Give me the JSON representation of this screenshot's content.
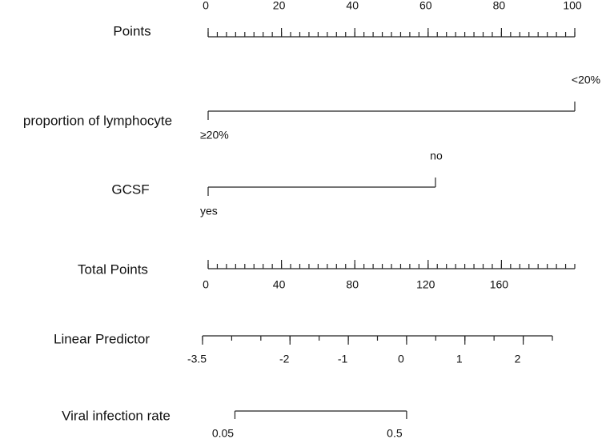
{
  "chart_data": {
    "type": "nomogram",
    "rows": [
      {
        "name": "Points",
        "kind": "axis",
        "xlim": [
          0,
          100
        ],
        "xticks": [
          0,
          20,
          40,
          60,
          80,
          100
        ],
        "minor_ticks": [
          0,
          2.5,
          5,
          7.5,
          10,
          12.5,
          15,
          17.5,
          20,
          22.5,
          25,
          27.5,
          30,
          32.5,
          35,
          37.5,
          40,
          42.5,
          45,
          47.5,
          50,
          52.5,
          55,
          57.5,
          60,
          62.5,
          65,
          67.5,
          70,
          72.5,
          75,
          77.5,
          80,
          82.5,
          85,
          87.5,
          90,
          92.5,
          95,
          97.5,
          100
        ]
      },
      {
        "name": "proportion of lymphocyte",
        "kind": "variable",
        "levels": [
          "≥20%",
          "<20%"
        ],
        "values": [
          0,
          100
        ]
      },
      {
        "name": "GCSF",
        "kind": "variable",
        "levels": [
          "yes",
          "no"
        ],
        "values": [
          0,
          62
        ]
      },
      {
        "name": "Total Points",
        "kind": "axis",
        "xlim": [
          0,
          200
        ],
        "xticks": [
          0,
          40,
          80,
          120,
          160
        ],
        "minor_ticks": [
          0,
          5,
          10,
          15,
          20,
          25,
          30,
          35,
          40,
          45,
          50,
          55,
          60,
          65,
          70,
          75,
          80,
          85,
          90,
          95,
          100,
          105,
          110,
          115,
          120,
          125,
          130,
          135,
          140,
          145,
          150,
          155,
          160,
          165,
          170,
          175,
          180,
          185,
          190,
          195,
          200
        ]
      },
      {
        "name": "Linear Predictor",
        "kind": "axis",
        "xlim": [
          -3.5,
          2.5
        ],
        "xticks": [
          -3.5,
          -2,
          -1,
          0,
          1,
          2
        ],
        "minor_ticks": [
          -3.5,
          -3,
          -2.5,
          -2,
          -1.5,
          -1,
          -0.5,
          0,
          0.5,
          1,
          1.5,
          2,
          2.5
        ]
      },
      {
        "name": "Viral infection rate",
        "kind": "probability",
        "scale": "logit",
        "values": [
          0.05,
          0.5
        ]
      }
    ]
  }
}
